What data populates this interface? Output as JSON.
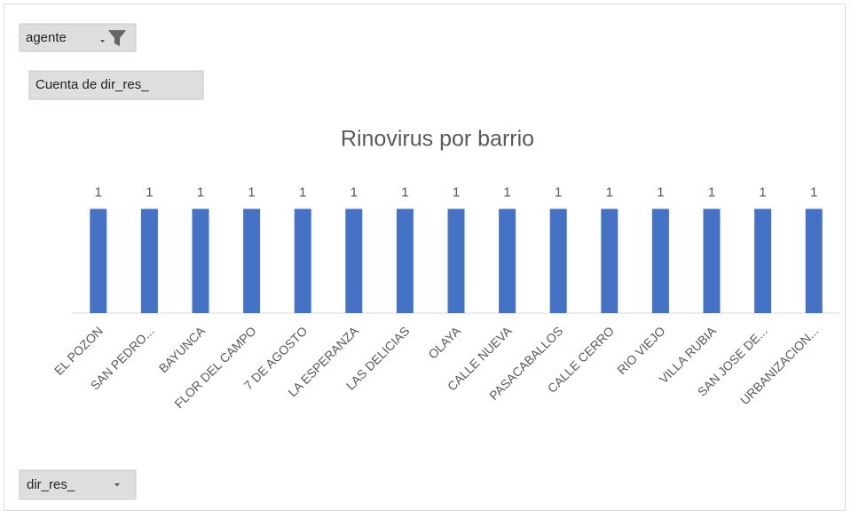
{
  "pivot_fields": {
    "filter": "agente",
    "value": "Cuenta de dir_res_",
    "axis": "dir_res_"
  },
  "chart_data": {
    "type": "bar",
    "title": "Rinovirus por barrio",
    "categories": [
      "EL POZON",
      "SAN PEDRO...",
      "BAYUNCA",
      "FLOR DEL CAMPO",
      "7 DE AGOSTO",
      "LA ESPERANZA",
      "LAS DELICIAS",
      "OLAYA",
      "CALLE NUEVA",
      "PASACABALLOS",
      "CALLE CERRO",
      "RIO VIEJO",
      "VILLA RUBIA",
      "SAN JOSE DE...",
      "URBANIZACION..."
    ],
    "values": [
      1,
      1,
      1,
      1,
      1,
      1,
      1,
      1,
      1,
      1,
      1,
      1,
      1,
      1,
      1
    ],
    "color": "#4472c4",
    "ylim": [
      0,
      1.2
    ],
    "grid": false
  }
}
